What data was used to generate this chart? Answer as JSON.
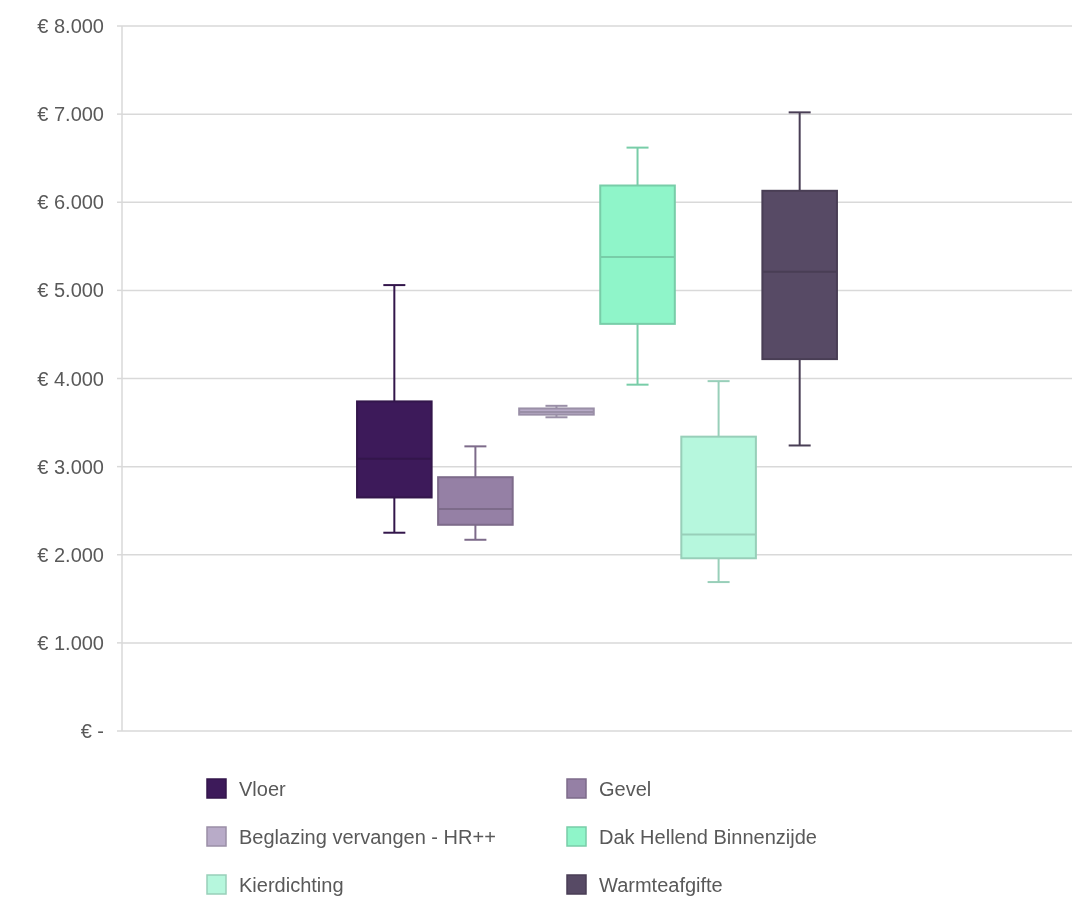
{
  "chart_data": {
    "type": "box",
    "categories": [
      null
    ],
    "ylim": [
      0,
      8000
    ],
    "yticks": [
      {
        "value": 0,
        "label": "€ -"
      },
      {
        "value": 1000,
        "label": "€ 1.000"
      },
      {
        "value": 2000,
        "label": "€ 2.000"
      },
      {
        "value": 3000,
        "label": "€ 3.000"
      },
      {
        "value": 4000,
        "label": "€ 4.000"
      },
      {
        "value": 5000,
        "label": "€ 5.000"
      },
      {
        "value": 6000,
        "label": "€ 6.000"
      },
      {
        "value": 7000,
        "label": "€ 7.000"
      },
      {
        "value": 8000,
        "label": "€ 8.000"
      }
    ],
    "grid": "y",
    "legend": "bottom",
    "series": [
      {
        "name": "Vloer",
        "color": "#3d1a5a",
        "boxes": [
          {
            "low": 2250,
            "q1": 2650,
            "median": 3090,
            "q3": 3740,
            "high": 5060
          }
        ]
      },
      {
        "name": "Gevel",
        "color": "#9580a5",
        "boxes": [
          {
            "low": 2170,
            "q1": 2340,
            "median": 2520,
            "q3": 2880,
            "high": 3230
          }
        ]
      },
      {
        "name": "Beglazing vervangen - HR++",
        "color": "#b8abc8",
        "boxes": [
          {
            "low": 3560,
            "q1": 3590,
            "median": 3620,
            "q3": 3660,
            "high": 3690
          }
        ]
      },
      {
        "name": "Dak Hellend Binnenzijde",
        "color": "#8ff5c9",
        "boxes": [
          {
            "low": 3930,
            "q1": 4620,
            "median": 5380,
            "q3": 6190,
            "high": 6620
          }
        ]
      },
      {
        "name": "Kierdichting",
        "color": "#b6f7dd",
        "boxes": [
          {
            "low": 1690,
            "q1": 1960,
            "median": 2230,
            "q3": 3340,
            "high": 3970
          }
        ]
      },
      {
        "name": "Warmteafgifte",
        "color": "#574a65",
        "boxes": [
          {
            "low": 3240,
            "q1": 4220,
            "median": 5210,
            "q3": 6130,
            "high": 7020
          }
        ]
      }
    ]
  }
}
